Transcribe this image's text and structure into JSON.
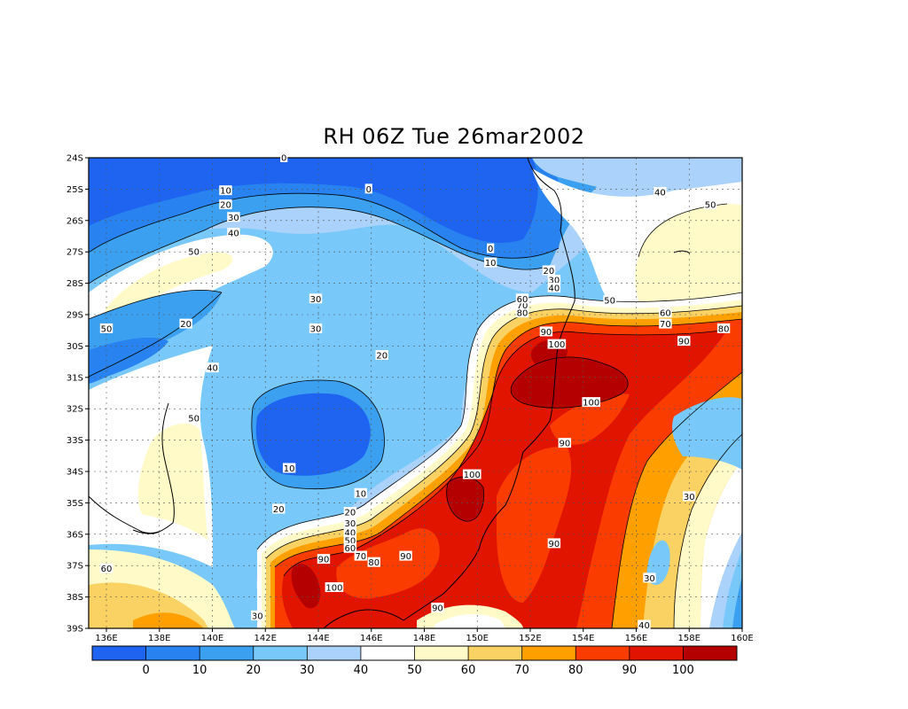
{
  "title": "RH 06Z Tue 26mar2002",
  "lat_labels": [
    "24S",
    "25S",
    "26S",
    "27S",
    "28S",
    "29S",
    "30S",
    "31S",
    "32S",
    "33S",
    "34S",
    "35S",
    "36S",
    "37S",
    "38S",
    "39S"
  ],
  "lon_labels": [
    "136E",
    "138E",
    "140E",
    "142E",
    "144E",
    "146E",
    "148E",
    "150E",
    "152E",
    "154E",
    "156E",
    "158E",
    "160E"
  ],
  "colorbar": {
    "colors": [
      "#1e64f0",
      "#2882f0",
      "#3ca0f0",
      "#78c8fa",
      "#aad2fa",
      "#ffffff",
      "#fffac8",
      "#fad264",
      "#ffa000",
      "#fa3c00",
      "#e11400",
      "#b40000"
    ],
    "labels": [
      "0",
      "10",
      "20",
      "30",
      "40",
      "50",
      "60",
      "70",
      "80",
      "90",
      "100"
    ]
  },
  "contour_labels": [
    {
      "text": "0",
      "lon": 142.7,
      "lat": -24.0
    },
    {
      "text": "0",
      "lon": 145.9,
      "lat": -25.0
    },
    {
      "text": "0",
      "lon": 150.5,
      "lat": -26.9
    },
    {
      "text": "10",
      "lon": 140.5,
      "lat": -25.05
    },
    {
      "text": "10",
      "lon": 150.5,
      "lat": -27.35
    },
    {
      "text": "20",
      "lon": 140.5,
      "lat": -25.5
    },
    {
      "text": "30",
      "lon": 140.8,
      "lat": -25.9
    },
    {
      "text": "40",
      "lon": 140.8,
      "lat": -26.4
    },
    {
      "text": "50",
      "lon": 139.3,
      "lat": -27.0
    },
    {
      "text": "30",
      "lon": 143.9,
      "lat": -28.5
    },
    {
      "text": "20",
      "lon": 139.0,
      "lat": -29.3
    },
    {
      "text": "50",
      "lon": 136.0,
      "lat": -29.45
    },
    {
      "text": "30",
      "lon": 143.9,
      "lat": -29.45
    },
    {
      "text": "20",
      "lon": 146.4,
      "lat": -30.3
    },
    {
      "text": "40",
      "lon": 140.0,
      "lat": -30.7
    },
    {
      "text": "50",
      "lon": 139.3,
      "lat": -32.3
    },
    {
      "text": "10",
      "lon": 142.9,
      "lat": -33.9
    },
    {
      "text": "10",
      "lon": 145.6,
      "lat": -34.7
    },
    {
      "text": "20",
      "lon": 142.5,
      "lat": -35.2
    },
    {
      "text": "20",
      "lon": 145.2,
      "lat": -35.3
    },
    {
      "text": "30",
      "lon": 145.2,
      "lat": -35.65
    },
    {
      "text": "40",
      "lon": 145.2,
      "lat": -35.95
    },
    {
      "text": "50",
      "lon": 145.2,
      "lat": -36.2
    },
    {
      "text": "60",
      "lon": 145.2,
      "lat": -36.45
    },
    {
      "text": "70",
      "lon": 145.6,
      "lat": -36.7
    },
    {
      "text": "80",
      "lon": 146.1,
      "lat": -36.9
    },
    {
      "text": "90",
      "lon": 144.2,
      "lat": -36.8
    },
    {
      "text": "90",
      "lon": 147.3,
      "lat": -36.7
    },
    {
      "text": "100",
      "lon": 144.6,
      "lat": -37.7
    },
    {
      "text": "30",
      "lon": 141.7,
      "lat": -38.6
    },
    {
      "text": "90",
      "lon": 148.5,
      "lat": -38.35
    },
    {
      "text": "40",
      "lon": 156.3,
      "lat": -38.9
    },
    {
      "text": "30",
      "lon": 156.5,
      "lat": -37.4
    },
    {
      "text": "30",
      "lon": 158.0,
      "lat": -34.8
    },
    {
      "text": "100",
      "lon": 149.8,
      "lat": -34.1
    },
    {
      "text": "90",
      "lon": 152.9,
      "lat": -36.3
    },
    {
      "text": "90",
      "lon": 153.3,
      "lat": -33.1
    },
    {
      "text": "100",
      "lon": 154.3,
      "lat": -31.8
    },
    {
      "text": "90",
      "lon": 152.6,
      "lat": -29.55
    },
    {
      "text": "100",
      "lon": 153.0,
      "lat": -29.95
    },
    {
      "text": "80",
      "lon": 151.7,
      "lat": -28.95
    },
    {
      "text": "70",
      "lon": 151.7,
      "lat": -28.7
    },
    {
      "text": "60",
      "lon": 151.7,
      "lat": -28.5
    },
    {
      "text": "50",
      "lon": 155.0,
      "lat": -28.55
    },
    {
      "text": "60",
      "lon": 157.1,
      "lat": -28.95
    },
    {
      "text": "70",
      "lon": 157.1,
      "lat": -29.3
    },
    {
      "text": "90",
      "lon": 157.8,
      "lat": -29.85
    },
    {
      "text": "80",
      "lon": 159.3,
      "lat": -29.45
    },
    {
      "text": "20",
      "lon": 152.7,
      "lat": -27.6
    },
    {
      "text": "30",
      "lon": 152.9,
      "lat": -27.9
    },
    {
      "text": "40",
      "lon": 152.9,
      "lat": -28.15
    },
    {
      "text": "40",
      "lon": 156.9,
      "lat": -25.1
    },
    {
      "text": "50",
      "lon": 158.8,
      "lat": -25.5
    },
    {
      "text": "60",
      "lon": 136.0,
      "lat": -37.1
    }
  ]
}
